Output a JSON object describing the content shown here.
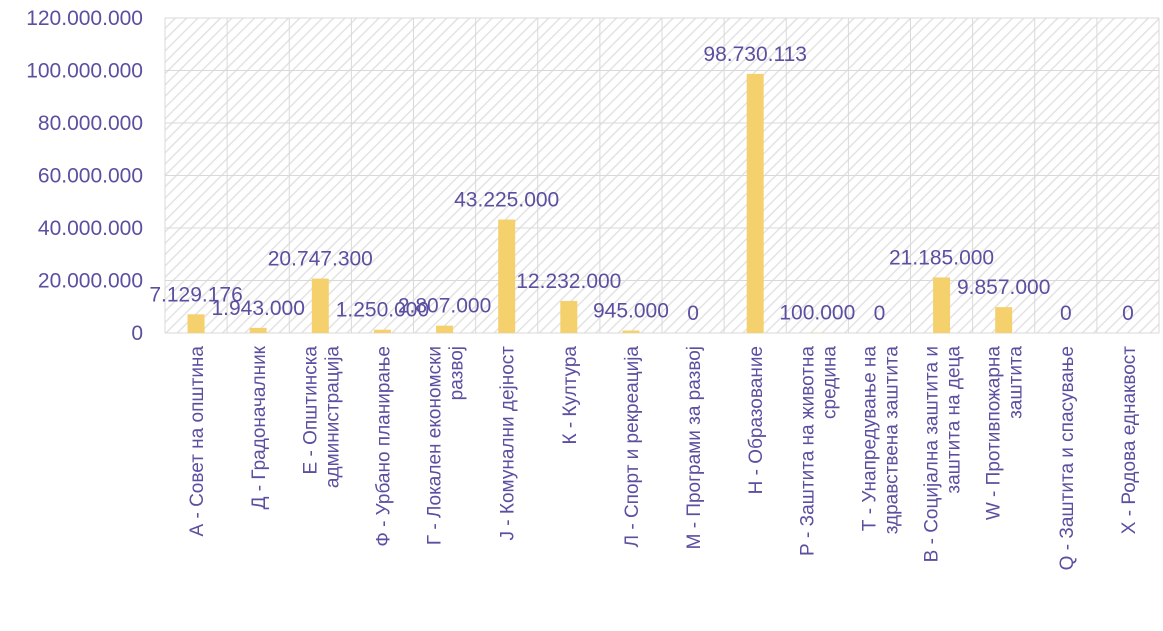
{
  "chart_data": {
    "type": "bar",
    "categories": [
      "А - Совет на општина",
      "Д - Градоначалник",
      "Е - Општинска администрација",
      "Ф - Урбано планирање",
      "Г - Локален економски развој",
      "Ј - Комунални дејност",
      "К - Култура",
      "Л - Спорт и рекреација",
      "М - Програми за развој",
      "Н - Образование",
      "Р - Заштита на животна средина",
      "Т - Унапредување на здравствена заштита",
      "В - Социјална заштита и заштита на деца",
      "W - Противпожарна заштита",
      "Q - Заштита и спасување",
      "Х - Родова еднаквост"
    ],
    "category_lines": [
      [
        "А - Совет на општина"
      ],
      [
        "Д - Градоначалник"
      ],
      [
        "Е - Општинска",
        "администрација"
      ],
      [
        "Ф - Урбано планирање"
      ],
      [
        "Г - Локален економски",
        "развој"
      ],
      [
        "Ј - Комунални дејност"
      ],
      [
        "К - Култура"
      ],
      [
        "Л - Спорт и рекреација"
      ],
      [
        "М - Програми за развој"
      ],
      [
        "Н - Образование"
      ],
      [
        "Р - Заштита на животна",
        "средина"
      ],
      [
        "Т - Унапредување на",
        "здравствена заштита"
      ],
      [
        "В - Социјална заштита и",
        "заштита на деца"
      ],
      [
        "W - Противпожарна",
        "заштита"
      ],
      [
        "Q - Заштита и спасување"
      ],
      [
        "Х - Родова еднаквост"
      ]
    ],
    "values": [
      7129176,
      1943000,
      20747300,
      1250000,
      2807000,
      43225000,
      12232000,
      945000,
      0,
      98730113,
      100000,
      0,
      21185000,
      9857000,
      0,
      0
    ],
    "data_labels": [
      "7.129.176",
      "1.943.000",
      "20.747.300",
      "1.250.000",
      "2.807.000",
      "43.225.000",
      "12.232.000",
      "945.000",
      "0",
      "98.730.113",
      "100.000",
      "0",
      "21.185.000",
      "9.857.000",
      "0",
      "0"
    ],
    "yticks": [
      0,
      20000000,
      40000000,
      60000000,
      80000000,
      100000000,
      120000000
    ],
    "ytick_labels": [
      "0",
      "20.000.000",
      "40.000.000",
      "60.000.000",
      "80.000.000",
      "100.000.000",
      "120.000.000"
    ],
    "ylim": [
      0,
      120000000
    ],
    "grid": true,
    "background": "hatched",
    "colors": {
      "bar": "#F5D16E",
      "text": "#5B4FA0",
      "grid": "#D9D9D9",
      "hatch": "#E6E6E6"
    }
  }
}
